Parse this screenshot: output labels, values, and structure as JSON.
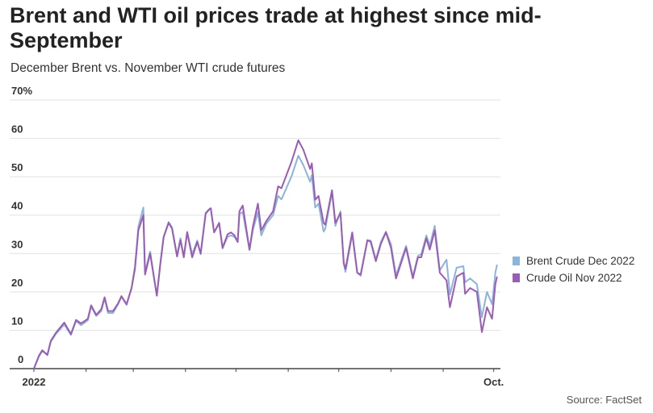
{
  "title": "Brent and WTI oil prices trade at highest since mid-September",
  "subtitle": "December Brent vs. November WTI crude futures",
  "source": "Source: FactSet",
  "chart_data": {
    "type": "line",
    "ylim": [
      0,
      70
    ],
    "y_ticks": [
      0,
      10,
      20,
      30,
      40,
      50,
      60,
      70
    ],
    "y_tick_labels": [
      "0",
      "10",
      "20",
      "30",
      "40",
      "50",
      "60",
      "70%"
    ],
    "x_range": [
      "2022-01-01",
      "2022-10-05"
    ],
    "x_ticks": [
      "2022-01-01",
      "2022-02-01",
      "2022-03-01",
      "2022-04-01",
      "2022-05-01",
      "2022-06-01",
      "2022-07-01",
      "2022-08-01",
      "2022-09-01",
      "2022-10-01"
    ],
    "x_tick_labels": [
      "2022",
      "",
      "",
      "",
      "",
      "",
      "",
      "",
      "",
      "Oct."
    ],
    "grid": true,
    "legend": "right",
    "x": [
      "2022-01-01",
      "2022-01-04",
      "2022-01-06",
      "2022-01-09",
      "2022-01-11",
      "2022-01-14",
      "2022-01-19",
      "2022-01-23",
      "2022-01-26",
      "2022-01-29",
      "2022-02-02",
      "2022-02-04",
      "2022-02-07",
      "2022-02-10",
      "2022-02-12",
      "2022-02-14",
      "2022-02-17",
      "2022-02-20",
      "2022-02-22",
      "2022-02-25",
      "2022-02-28",
      "2022-03-02",
      "2022-03-03",
      "2022-03-04",
      "2022-03-07",
      "2022-03-08",
      "2022-03-11",
      "2022-03-15",
      "2022-03-17",
      "2022-03-19",
      "2022-03-22",
      "2022-03-24",
      "2022-03-27",
      "2022-03-29",
      "2022-03-31",
      "2022-04-02",
      "2022-04-05",
      "2022-04-08",
      "2022-04-10",
      "2022-04-13",
      "2022-04-15",
      "2022-04-16",
      "2022-04-18",
      "2022-04-21",
      "2022-04-23",
      "2022-04-26",
      "2022-04-28",
      "2022-04-30",
      "2022-05-02",
      "2022-05-03",
      "2022-05-05",
      "2022-05-09",
      "2022-05-11",
      "2022-05-14",
      "2022-05-16",
      "2022-05-19",
      "2022-05-23",
      "2022-05-26",
      "2022-05-28",
      "2022-06-03",
      "2022-06-07",
      "2022-06-10",
      "2022-06-14",
      "2022-06-15",
      "2022-06-17",
      "2022-06-19",
      "2022-06-22",
      "2022-06-23",
      "2022-06-27",
      "2022-06-29",
      "2022-07-02",
      "2022-07-04",
      "2022-07-05",
      "2022-07-09",
      "2022-07-12",
      "2022-07-14",
      "2022-07-18",
      "2022-07-20",
      "2022-07-23",
      "2022-07-25",
      "2022-07-26",
      "2022-07-29",
      "2022-08-01",
      "2022-08-04",
      "2022-08-07",
      "2022-08-10",
      "2022-08-14",
      "2022-08-17",
      "2022-08-19",
      "2022-08-22",
      "2022-08-24",
      "2022-08-27",
      "2022-08-30",
      "2022-09-03",
      "2022-09-05",
      "2022-09-09",
      "2022-09-13",
      "2022-09-14",
      "2022-09-17",
      "2022-09-21",
      "2022-09-24",
      "2022-09-27",
      "2022-09-30",
      "2022-10-02",
      "2022-10-03"
    ],
    "series": [
      {
        "name": "Brent Crude Dec 2022",
        "color": "#8db4da",
        "values": [
          0,
          3.2,
          4.6,
          3.5,
          7,
          9,
          11.5,
          8.8,
          12.4,
          11.3,
          12.6,
          16.2,
          13.7,
          15,
          18.3,
          14.5,
          14.5,
          16.8,
          18.7,
          16.6,
          21,
          26.7,
          31.5,
          37,
          42,
          25.2,
          30.5,
          19,
          27.3,
          34.4,
          38.2,
          36.8,
          29.4,
          34,
          29.2,
          35.7,
          29.8,
          33.4,
          29.8,
          40.3,
          41.4,
          41.8,
          35.5,
          37.8,
          31.3,
          34.4,
          34.7,
          34.4,
          33,
          40.3,
          40.8,
          30.9,
          36.1,
          40.8,
          34.7,
          37.8,
          40,
          45,
          44.1,
          50.2,
          55.5,
          53,
          48.7,
          50.4,
          42,
          43,
          35.7,
          36.5,
          46,
          37.2,
          41,
          27.3,
          25.2,
          35,
          25,
          24.2,
          33.4,
          33.4,
          28.4,
          31.5,
          33,
          35.7,
          32.4,
          24.2,
          28.2,
          32,
          24,
          29.4,
          29.8,
          34.7,
          32,
          37.2,
          25.6,
          28.4,
          19.3,
          26.3,
          26.7,
          22.5,
          23.5,
          22,
          13.4,
          20,
          16.8,
          25,
          27.1
        ]
      },
      {
        "name": "Crude Oil Nov 2022",
        "color": "#9a5cb4",
        "values": [
          0,
          3.4,
          4.8,
          3.6,
          7.2,
          9.3,
          12,
          9,
          12.7,
          11.8,
          13,
          16.5,
          14,
          15.5,
          18.6,
          15,
          15,
          17,
          18.9,
          16.8,
          21,
          26,
          31,
          36,
          40,
          24.5,
          30,
          19,
          27,
          34.2,
          38,
          36.5,
          29.2,
          33.5,
          29,
          35.5,
          29,
          33,
          30,
          40.5,
          41.5,
          41.8,
          35.5,
          38,
          31.5,
          35,
          35.5,
          34.8,
          33,
          41,
          42.5,
          31,
          37,
          43,
          36,
          38.5,
          41,
          47.5,
          47,
          54,
          59.5,
          57,
          52,
          53.5,
          44,
          45,
          38,
          37.5,
          46.5,
          38,
          40.5,
          27.5,
          26,
          35.5,
          25,
          24.5,
          33.5,
          33,
          28,
          31,
          32.5,
          35.5,
          31.5,
          23.5,
          27.5,
          31.5,
          23.5,
          29,
          29,
          34,
          31,
          36,
          25,
          23,
          16,
          24,
          25,
          19.5,
          21,
          20,
          9.5,
          16,
          13,
          22,
          24
        ]
      }
    ]
  }
}
